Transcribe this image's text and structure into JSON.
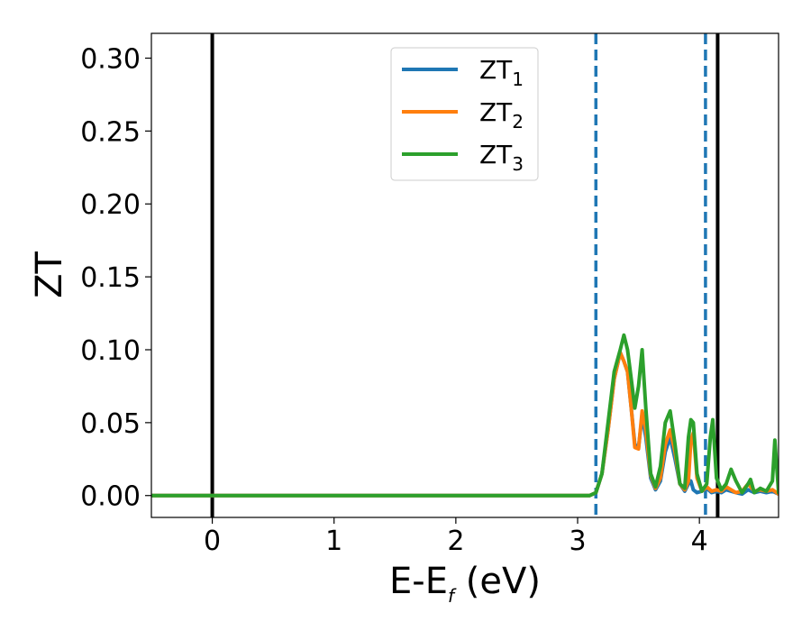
{
  "chart_data": {
    "type": "line",
    "title": "",
    "xlabel": {
      "main": "E-E",
      "sub": "f",
      "unit": " (eV)"
    },
    "ylabel": "ZT",
    "xlim": [
      -0.5,
      4.65
    ],
    "ylim": [
      -0.015,
      0.317
    ],
    "xticks": [
      0,
      1,
      2,
      3,
      4
    ],
    "xtick_labels": [
      "0",
      "1",
      "2",
      "3",
      "4"
    ],
    "yticks": [
      0.0,
      0.05,
      0.1,
      0.15,
      0.2,
      0.25,
      0.3
    ],
    "ytick_labels": [
      "0.00",
      "0.05",
      "0.10",
      "0.15",
      "0.20",
      "0.25",
      "0.30"
    ],
    "grid": false,
    "legend": {
      "placement": "upper center"
    },
    "vlines": [
      {
        "x": 0.0,
        "style": "solid",
        "color": "#000000"
      },
      {
        "x": 3.15,
        "style": "dashed",
        "color": "#1f77b4"
      },
      {
        "x": 4.05,
        "style": "dashed",
        "color": "#1f77b4"
      },
      {
        "x": 4.15,
        "style": "solid",
        "color": "#000000"
      }
    ],
    "series": [
      {
        "name": "ZT",
        "sub": "1",
        "color": "#1f77b4",
        "x": [
          -0.5,
          3.0,
          3.1,
          3.15,
          3.2,
          3.25,
          3.3,
          3.35,
          3.38,
          3.41,
          3.44,
          3.47,
          3.5,
          3.53,
          3.56,
          3.6,
          3.64,
          3.68,
          3.72,
          3.76,
          3.8,
          3.84,
          3.88,
          3.91,
          3.93,
          3.95,
          3.98,
          4.02,
          4.06,
          4.1,
          4.14,
          4.18,
          4.22,
          4.26,
          4.3,
          4.35,
          4.4,
          4.45,
          4.5,
          4.55,
          4.6,
          4.65
        ],
        "y": [
          0.0,
          0.0,
          0.0,
          0.002,
          0.015,
          0.045,
          0.08,
          0.098,
          0.092,
          0.085,
          0.06,
          0.035,
          0.033,
          0.055,
          0.04,
          0.012,
          0.004,
          0.01,
          0.03,
          0.04,
          0.025,
          0.008,
          0.003,
          0.008,
          0.01,
          0.004,
          0.002,
          0.003,
          0.005,
          0.002,
          0.003,
          0.002,
          0.004,
          0.003,
          0.002,
          0.001,
          0.004,
          0.002,
          0.003,
          0.002,
          0.003,
          0.001
        ]
      },
      {
        "name": "ZT",
        "sub": "2",
        "color": "#ff7f0e",
        "x": [
          -0.5,
          3.0,
          3.1,
          3.15,
          3.2,
          3.25,
          3.3,
          3.35,
          3.38,
          3.41,
          3.44,
          3.47,
          3.5,
          3.53,
          3.56,
          3.6,
          3.64,
          3.68,
          3.72,
          3.76,
          3.8,
          3.84,
          3.88,
          3.91,
          3.93,
          3.95,
          3.98,
          4.02,
          4.06,
          4.1,
          4.14,
          4.18,
          4.22,
          4.26,
          4.3,
          4.35,
          4.4,
          4.45,
          4.5,
          4.55,
          4.6,
          4.65
        ],
        "y": [
          0.0,
          0.0,
          0.0,
          0.002,
          0.015,
          0.045,
          0.08,
          0.098,
          0.092,
          0.085,
          0.06,
          0.033,
          0.032,
          0.058,
          0.045,
          0.014,
          0.005,
          0.012,
          0.035,
          0.045,
          0.03,
          0.008,
          0.004,
          0.01,
          0.038,
          0.043,
          0.012,
          0.003,
          0.006,
          0.003,
          0.004,
          0.003,
          0.006,
          0.004,
          0.002,
          0.003,
          0.008,
          0.003,
          0.004,
          0.003,
          0.004,
          0.001
        ]
      },
      {
        "name": "ZT",
        "sub": "3",
        "color": "#2ca02c",
        "x": [
          -0.5,
          3.0,
          3.1,
          3.15,
          3.2,
          3.25,
          3.3,
          3.35,
          3.38,
          3.41,
          3.44,
          3.47,
          3.5,
          3.53,
          3.56,
          3.6,
          3.64,
          3.68,
          3.72,
          3.76,
          3.8,
          3.84,
          3.88,
          3.91,
          3.93,
          3.95,
          3.98,
          4.02,
          4.06,
          4.09,
          4.11,
          4.14,
          4.18,
          4.22,
          4.26,
          4.3,
          4.35,
          4.4,
          4.42,
          4.45,
          4.5,
          4.55,
          4.6,
          4.62,
          4.65
        ],
        "y": [
          0.0,
          0.0,
          0.0,
          0.002,
          0.015,
          0.05,
          0.085,
          0.1,
          0.11,
          0.1,
          0.08,
          0.06,
          0.075,
          0.1,
          0.06,
          0.015,
          0.006,
          0.02,
          0.05,
          0.058,
          0.035,
          0.008,
          0.005,
          0.04,
          0.052,
          0.05,
          0.015,
          0.003,
          0.008,
          0.04,
          0.052,
          0.012,
          0.004,
          0.008,
          0.018,
          0.01,
          0.002,
          0.008,
          0.011,
          0.002,
          0.005,
          0.003,
          0.01,
          0.038,
          0.002
        ]
      }
    ]
  }
}
